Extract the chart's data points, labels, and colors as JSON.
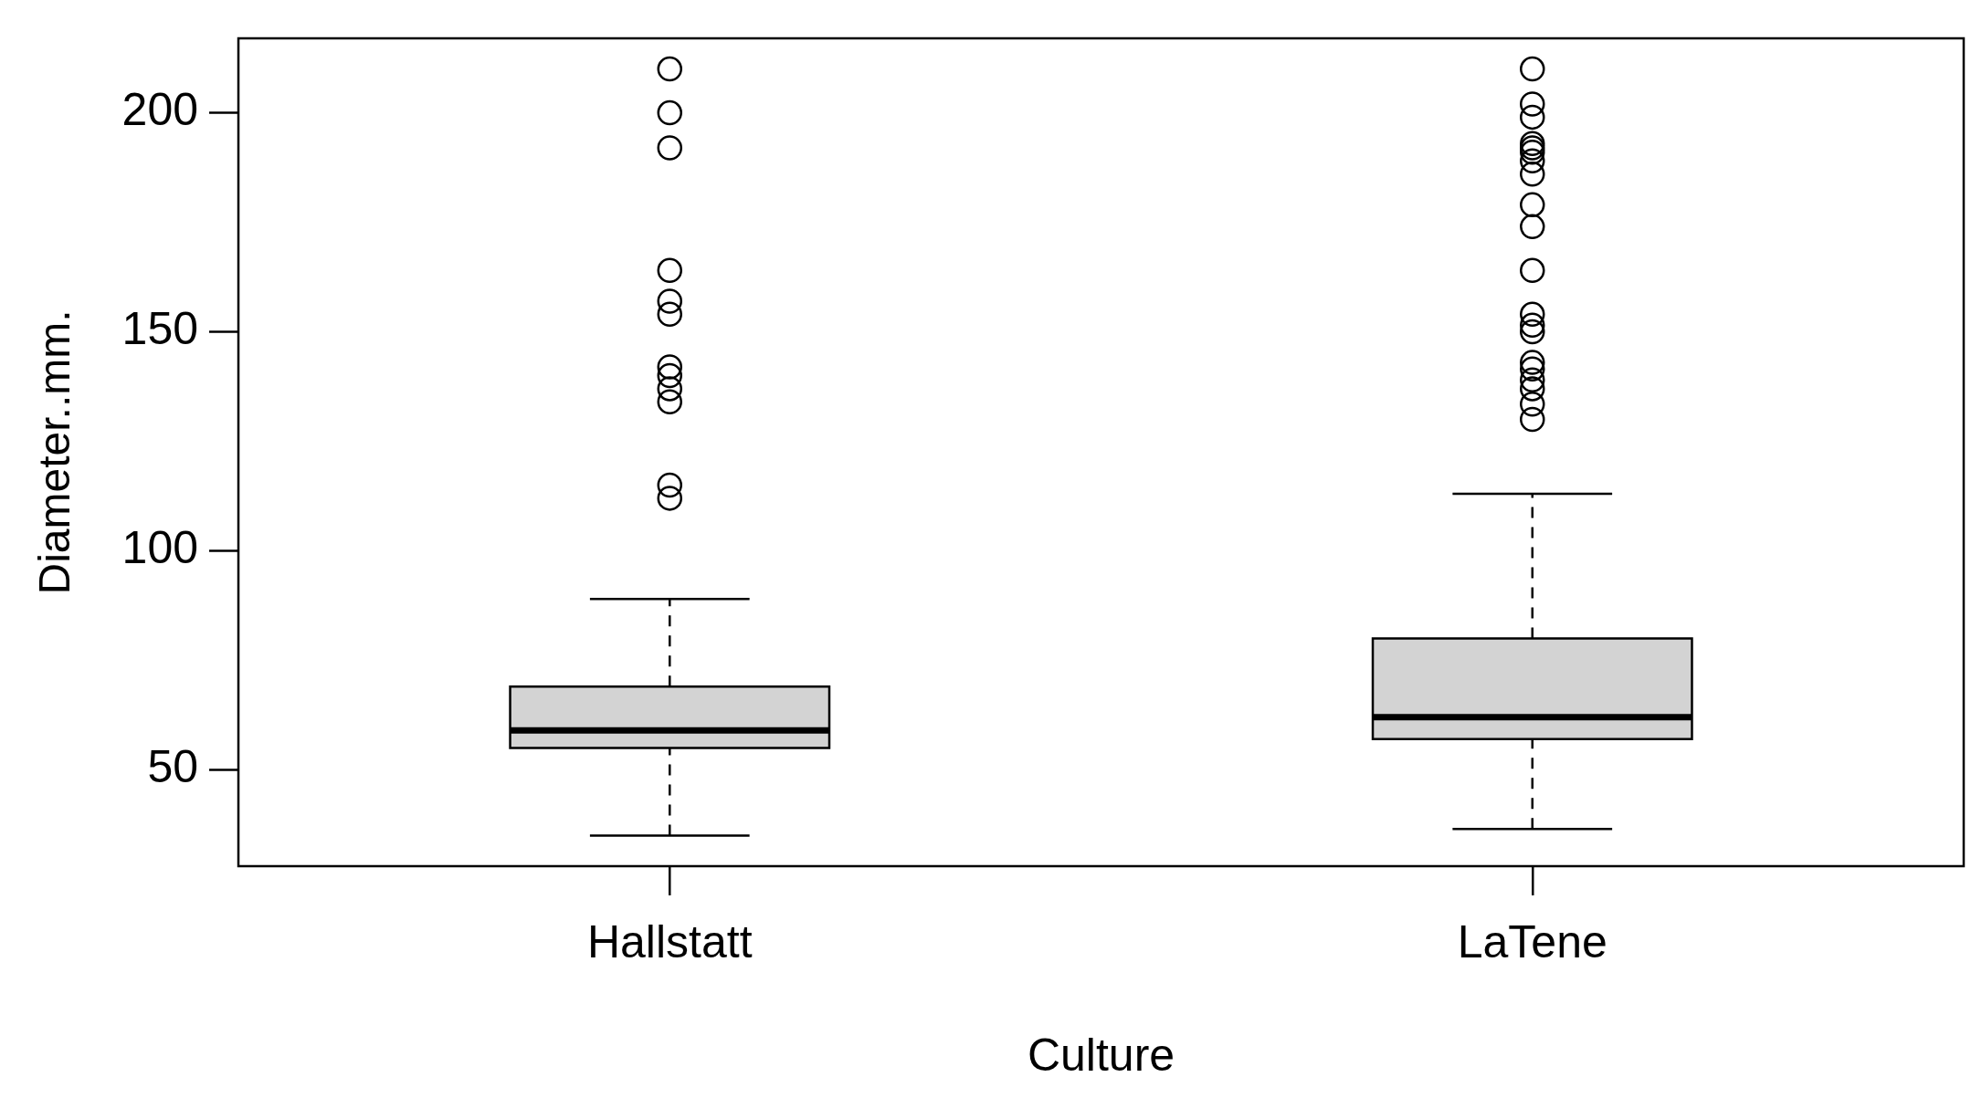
{
  "chart_data": {
    "type": "box",
    "xlabel": "Culture",
    "ylabel": "Diameter..mm.",
    "categories": [
      "Hallstatt",
      "LaTene"
    ],
    "boxes": [
      {
        "low": 35,
        "q1": 55,
        "median": 59,
        "q3": 69,
        "high": 89,
        "outliers": [
          210,
          200,
          192,
          164,
          157,
          154,
          142,
          140,
          137,
          134,
          115,
          112
        ]
      },
      {
        "low": 36.5,
        "q1": 57,
        "median": 62,
        "q3": 80,
        "high": 113,
        "outliers": [
          210,
          202,
          199,
          193,
          192,
          191,
          189,
          186,
          179,
          174,
          164,
          154,
          151.5,
          150,
          143,
          141.5,
          139,
          137,
          133.5,
          130
        ]
      }
    ],
    "color": "#d3d3d3",
    "marker": "circle",
    "grid": false,
    "legend": false,
    "ylim": [
      28,
      217
    ],
    "yticks": [
      50,
      100,
      150,
      200
    ]
  }
}
